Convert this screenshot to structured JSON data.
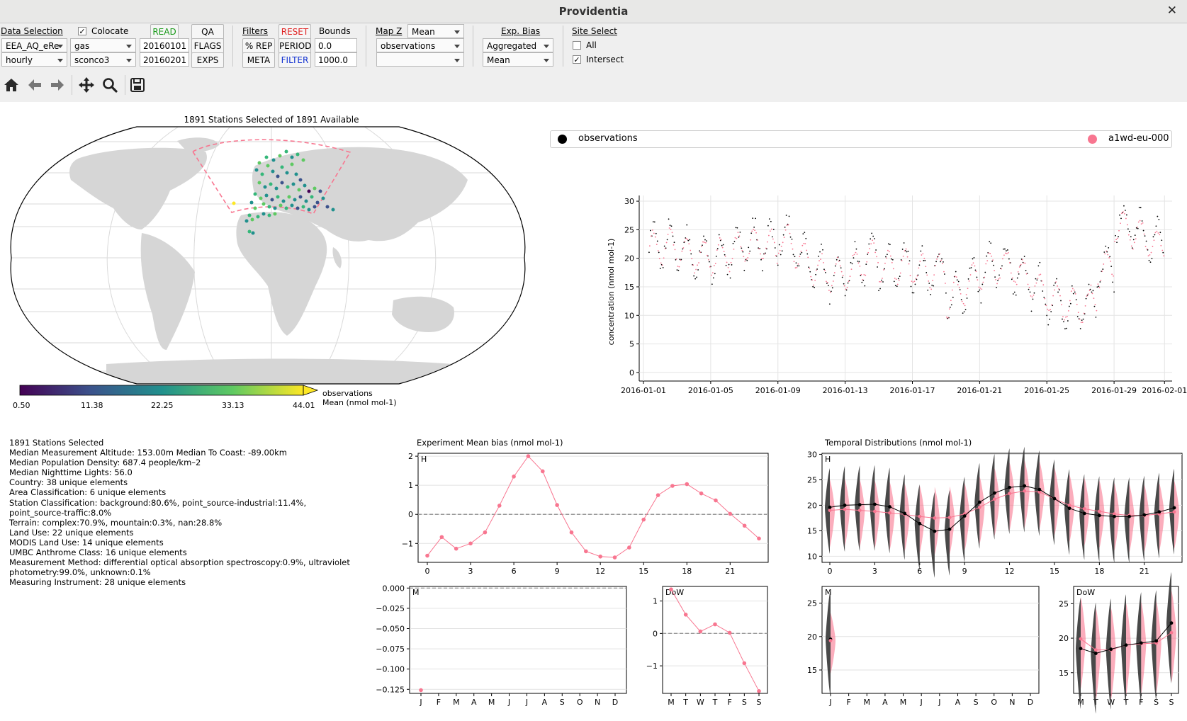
{
  "window": {
    "title": "Providentia"
  },
  "toolbar": {
    "data_selection": {
      "label": "Data Selection",
      "network": "EEA_AQ_eRe",
      "resolution": "hourly",
      "matrix": "gas",
      "species": "sconco3",
      "start_date": "20160101",
      "end_date": "20160201",
      "colocate_label": "Colocate",
      "colocate_checked": true,
      "read": "READ",
      "qa": "QA",
      "flags": "FLAGS",
      "exps": "EXPS"
    },
    "filters": {
      "label": "Filters",
      "reset": "RESET",
      "bounds_label": "Bounds",
      "rep": "% REP",
      "period": "PERIOD",
      "meta": "META",
      "filter": "FILTER",
      "lower_bound": "0.0",
      "upper_bound": "1000.0"
    },
    "map_z": {
      "label": "Map Z",
      "stat": "Mean",
      "dataset_1": "observations",
      "dataset_2": ""
    },
    "exp_bias": {
      "label": "Exp. Bias",
      "mode": "Aggregated",
      "stat": "Mean"
    },
    "site_select": {
      "label": "Site Select",
      "all_label": "All",
      "all_checked": false,
      "intersect_label": "Intersect",
      "intersect_checked": true
    },
    "nav_icons": [
      "home-icon",
      "back-arrow-icon",
      "forward-arrow-icon",
      "pan-icon",
      "zoom-icon",
      "save-icon"
    ]
  },
  "map": {
    "title": "1891 Stations Selected of 1891 Available",
    "colorbar_ticks": [
      "0.50",
      "11.38",
      "22.25",
      "33.13",
      "44.01"
    ],
    "colorbar_label_1": "observations",
    "colorbar_label_2": "Mean  (nmol mol-1)"
  },
  "legend": {
    "obs_label": "observations",
    "exp_label": "a1wd-eu-000",
    "obs_color": "#000000",
    "exp_color": "#f87690"
  },
  "timeseries": {
    "ylabel": "concentration (nmol mol-1)",
    "yticks": [
      "0",
      "5",
      "10",
      "15",
      "20",
      "25",
      "30"
    ],
    "xticks": [
      "2016-01-01",
      "2016-01-05",
      "2016-01-09",
      "2016-01-13",
      "2016-01-17",
      "2016-01-21",
      "2016-01-25",
      "2016-01-29",
      "2016-02-01"
    ]
  },
  "metadata": {
    "lines": [
      "1891 Stations Selected",
      "Median Measurement Altitude: 153.00m   Median To Coast: -89.00km",
      "Median Population Density: 687.4 people/km–2",
      "Median Nighttime Lights: 56.0",
      "Country: 38 unique elements",
      "Area Classification: 6 unique elements",
      "Station Classification: background:80.6%, point_source-industrial:11.4%,",
      "point_source-traffic:8.0%",
      "Terrain: complex:70.9%, mountain:0.3%, nan:28.8%",
      "Land Use: 22 unique elements",
      "MODIS Land Use: 14 unique elements",
      "UMBC Anthrome Class: 16 unique elements",
      "Measurement Method: differential optical absorption spectroscopy:0.9%, ultraviolet",
      "photometry:99.0%, unknown:0.1%",
      "Measuring Instrument: 28 unique elements"
    ]
  },
  "bias_plot": {
    "title": "Experiment Mean bias (nmol mol-1)",
    "h_tag": "H",
    "m_tag": "M",
    "dow_tag": "DoW",
    "h_xticks": [
      "0",
      "3",
      "6",
      "9",
      "12",
      "15",
      "18",
      "21"
    ],
    "h_yticks": [
      "2",
      "1",
      "0",
      "−1"
    ],
    "m_yticks": [
      "0.000",
      "−0.025",
      "−0.050",
      "−0.075",
      "−0.100",
      "−0.125"
    ],
    "month_labels": [
      "J",
      "F",
      "M",
      "A",
      "M",
      "J",
      "J",
      "A",
      "S",
      "O",
      "N",
      "D"
    ],
    "dow_labels": [
      "M",
      "T",
      "W",
      "T",
      "F",
      "S",
      "S"
    ],
    "dow_yticks": [
      "1",
      "0",
      "−1"
    ]
  },
  "dist_plot": {
    "title": "Temporal Distributions (nmol mol-1)",
    "h_tag": "H",
    "m_tag": "M",
    "dow_tag": "DoW",
    "h_yticks": [
      "30",
      "25",
      "20",
      "15",
      "10"
    ],
    "h_xticks": [
      "0",
      "3",
      "6",
      "9",
      "12",
      "15",
      "18",
      "21"
    ],
    "m_yticks": [
      "25",
      "20",
      "15"
    ],
    "dow_yticks": [
      "25",
      "20",
      "15"
    ]
  },
  "chart_data": [
    {
      "type": "line",
      "title": "Experiment Mean bias (nmol mol-1) — H",
      "x": [
        0,
        1,
        2,
        3,
        4,
        5,
        6,
        7,
        8,
        9,
        10,
        11,
        12,
        13,
        14,
        15,
        16,
        17,
        18,
        19,
        20,
        21,
        22,
        23
      ],
      "series": [
        {
          "values": [
            -1.42,
            -0.78,
            -1.18,
            -1.0,
            -0.62,
            0.3,
            1.3,
            2.0,
            1.48,
            0.32,
            -0.62,
            -1.27,
            -1.45,
            -1.48,
            -1.14,
            -0.18,
            0.66,
            0.98,
            1.04,
            0.72,
            0.48,
            0.02,
            -0.39,
            -0.83
          ]
        }
      ],
      "ylim": [
        -1.65,
        2.1
      ],
      "color": "#f87690"
    },
    {
      "type": "scatter",
      "title": "Experiment Mean bias (nmol mol-1) — M",
      "categories": [
        "J"
      ],
      "series": [
        {
          "values": [
            -0.126
          ]
        }
      ],
      "ylim": [
        -0.13,
        0.002
      ]
    },
    {
      "type": "line",
      "title": "Experiment Mean bias (nmol mol-1) — DoW",
      "categories": [
        "M",
        "T",
        "W",
        "T",
        "F",
        "S",
        "S"
      ],
      "series": [
        {
          "values": [
            1.36,
            0.58,
            0.06,
            0.28,
            0.02,
            -0.92,
            -1.78
          ]
        }
      ],
      "ylim": [
        -1.85,
        1.45
      ]
    },
    {
      "type": "line",
      "title": "Temporal Distributions (nmol mol-1) — H medians",
      "x": [
        0,
        1,
        2,
        3,
        4,
        5,
        6,
        7,
        8,
        9,
        10,
        11,
        12,
        13,
        14,
        15,
        16,
        17,
        18,
        19,
        20,
        21,
        22,
        23
      ],
      "series": [
        {
          "name": "observations",
          "values": [
            19.6,
            20.0,
            20.1,
            20.2,
            19.7,
            18.4,
            16.4,
            14.9,
            15.3,
            17.9,
            20.6,
            22.4,
            23.5,
            23.8,
            23.1,
            21.3,
            19.4,
            18.4,
            18.0,
            17.8,
            17.8,
            18.1,
            18.7,
            19.5
          ]
        },
        {
          "name": "a1wd-eu-000",
          "values": [
            19.0,
            19.2,
            19.0,
            18.8,
            18.5,
            18.2,
            17.8,
            17.5,
            17.6,
            18.3,
            19.6,
            21.2,
            22.3,
            22.8,
            22.6,
            21.3,
            20.0,
            19.3,
            18.8,
            18.3,
            18.0,
            18.0,
            18.3,
            18.7
          ]
        }
      ],
      "ylim": [
        8.8,
        30.2
      ]
    },
    {
      "type": "line",
      "title": "Temporal Distributions (nmol mol-1) — DoW medians",
      "categories": [
        "M",
        "T",
        "W",
        "T",
        "F",
        "S",
        "S"
      ],
      "series": [
        {
          "name": "observations",
          "values": [
            18.5,
            17.8,
            18.4,
            19.0,
            19.3,
            19.6,
            22.2
          ]
        },
        {
          "name": "a1wd-eu-000",
          "values": [
            19.9,
            18.3,
            18.3,
            19.0,
            19.2,
            19.3,
            20.8
          ]
        }
      ],
      "ylim": [
        12.0,
        27.5
      ]
    }
  ]
}
